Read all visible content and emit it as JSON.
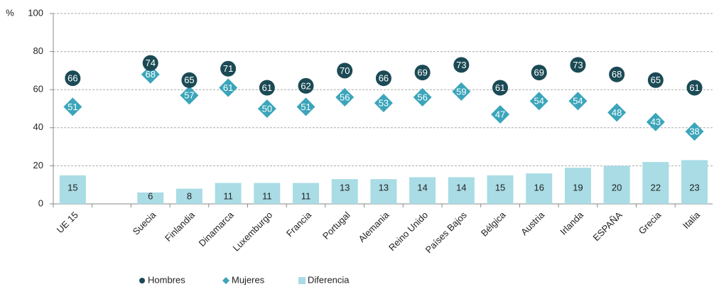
{
  "chart_data": {
    "type": "bar-dot",
    "ylabel": "%",
    "categories": [
      "UE 15",
      null,
      "Suecia",
      "Finlandia",
      "Dinamarca",
      "Luxemburgo",
      "Francia",
      "Portugal",
      "Alemania",
      "Reino Unido",
      "Países Bajos",
      "Bélgica",
      "Austria",
      "Irlanda",
      "ESPAÑA",
      "Grecia",
      "Italia"
    ],
    "series": [
      {
        "name": "Hombres",
        "color": "#1b4a55",
        "marker": "circle",
        "values": [
          66,
          null,
          74,
          65,
          71,
          61,
          62,
          70,
          66,
          69,
          73,
          61,
          69,
          73,
          68,
          65,
          61
        ]
      },
      {
        "name": "Mujeres",
        "color": "#3ba5ba",
        "marker": "diamond",
        "values": [
          51,
          null,
          68,
          57,
          61,
          50,
          51,
          56,
          53,
          56,
          59,
          47,
          54,
          54,
          48,
          43,
          38
        ]
      },
      {
        "name": "Diferencia",
        "color": "#a9dce5",
        "marker": "bar",
        "values": [
          15,
          null,
          6,
          8,
          11,
          11,
          11,
          13,
          13,
          14,
          14,
          15,
          16,
          19,
          20,
          22,
          23
        ]
      }
    ],
    "ylim": [
      0,
      100
    ],
    "yticks": [
      0,
      20,
      40,
      60,
      80,
      100
    ],
    "grid": true
  }
}
